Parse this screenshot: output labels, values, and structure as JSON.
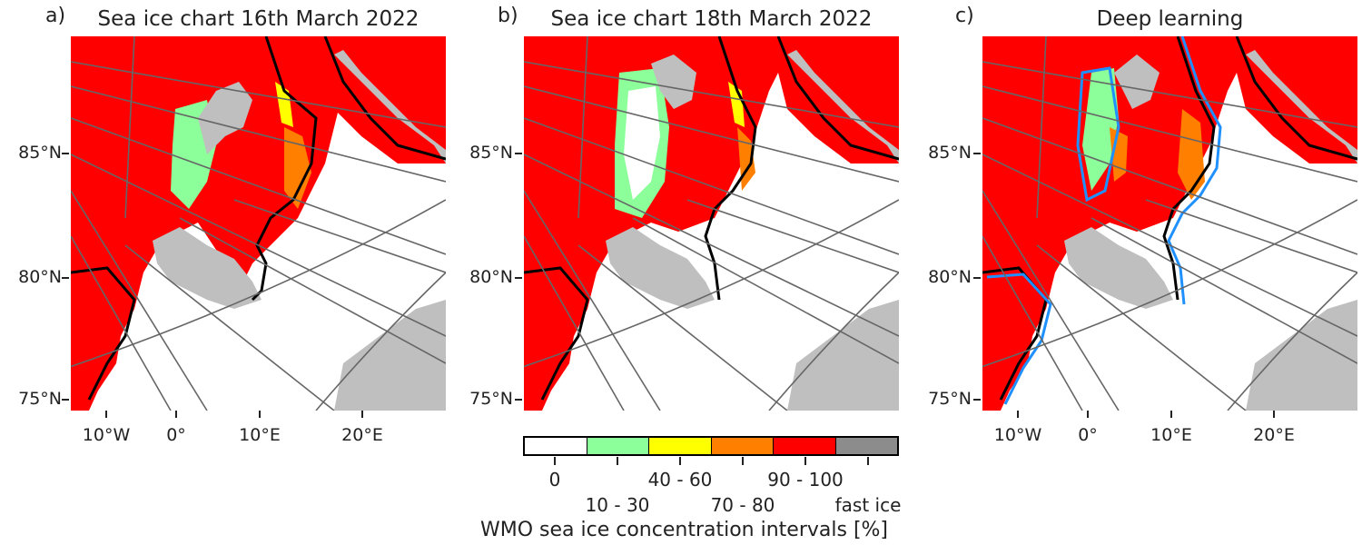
{
  "panels": [
    {
      "letter": "a)",
      "title": "Sea ice chart 16th March 2022"
    },
    {
      "letter": "b)",
      "title": "Sea ice chart 18th March 2022"
    },
    {
      "letter": "c)",
      "title": "Deep learning"
    }
  ],
  "lat_labels": [
    "85°N",
    "80°N",
    "75°N"
  ],
  "lon_labels": [
    "10°W",
    "0°",
    "10°E",
    "20°E"
  ],
  "colorbar": {
    "title": "WMO sea ice concentration intervals [%]",
    "upper_labels": [
      "0",
      "40 - 60",
      "90 - 100"
    ],
    "lower_labels": [
      "10 - 30",
      "70 - 80",
      "fast ice"
    ],
    "colors": {
      "open_water": "#ffffff",
      "c10_30": "#8cff9a",
      "c40_60": "#ffff00",
      "c70_80": "#ff7f00",
      "c90_100": "#ff0000",
      "fast_ice": "#8c8c8c"
    }
  },
  "map_colors": {
    "land": "#bfbfbf",
    "ice_edge": "#000000",
    "prediction_edge": "#1e90ff",
    "graticule": "#666666"
  }
}
